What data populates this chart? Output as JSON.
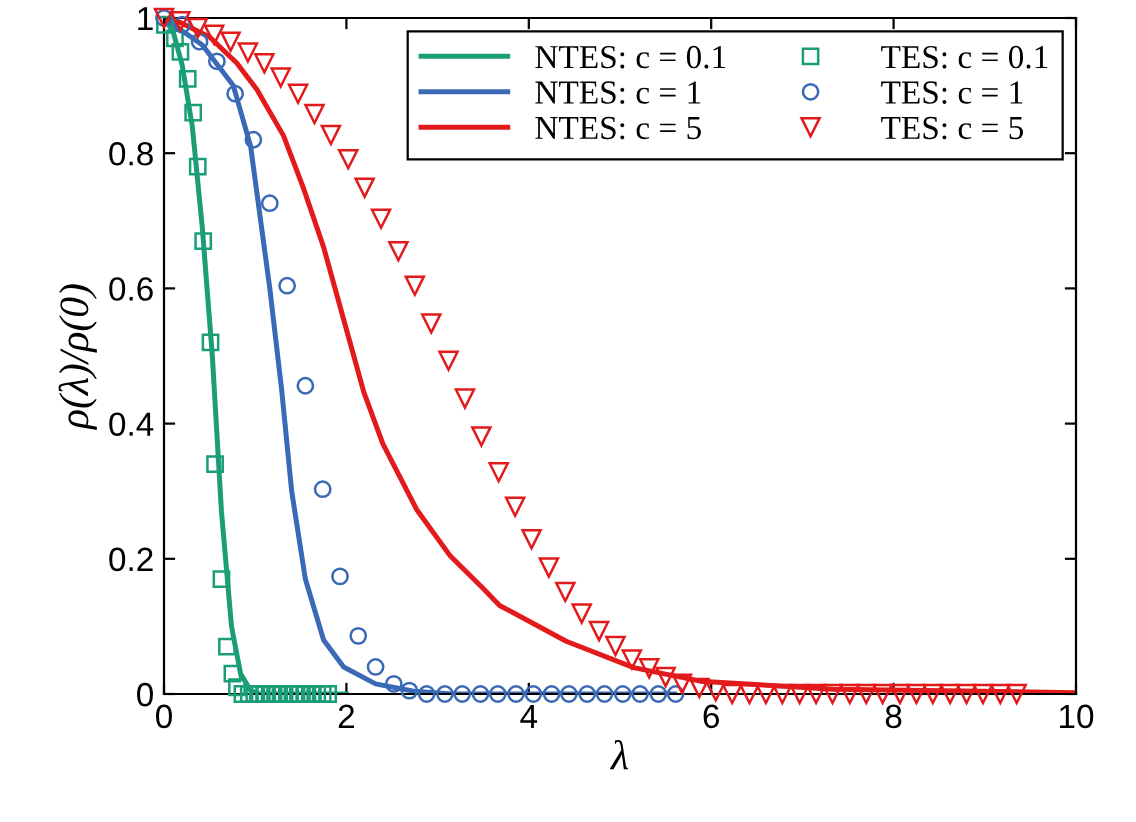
{
  "chart_data": {
    "type": "line",
    "xlabel": "λ",
    "ylabel": "ρ(λ)/ρ(0)",
    "xlim": [
      0,
      10
    ],
    "ylim": [
      0,
      1
    ],
    "xticks": [
      0,
      2,
      4,
      6,
      8,
      10
    ],
    "yticks": [
      0,
      0.2,
      0.4,
      0.6,
      0.8,
      1
    ],
    "grid": false,
    "legend": "top right",
    "series": [
      {
        "name": "NTES: c = 0.1",
        "color": "#1b9e77",
        "line_style": "solid",
        "marker": "none",
        "x": [
          0,
          0.1,
          0.2,
          0.31,
          0.42,
          0.53,
          0.63,
          0.74,
          0.84,
          0.95,
          1.05,
          2.0
        ],
        "values": [
          1,
          0.98,
          0.93,
          0.84,
          0.69,
          0.5,
          0.27,
          0.1,
          0.03,
          0.005,
          0,
          0
        ]
      },
      {
        "name": "NTES: c = 1",
        "color": "#3a6ab5",
        "line_style": "solid",
        "marker": "none",
        "x": [
          0,
          0.42,
          0.76,
          0.95,
          1.16,
          1.29,
          1.4,
          1.55,
          1.75,
          1.97,
          2.32,
          2.74,
          3.16,
          5.6
        ],
        "values": [
          1,
          0.96,
          0.9,
          0.81,
          0.6,
          0.45,
          0.3,
          0.17,
          0.08,
          0.04,
          0.015,
          0.004,
          0,
          0
        ]
      },
      {
        "name": "NTES: c = 5",
        "color": "#e31a1c",
        "line_style": "solid",
        "marker": "none",
        "x": [
          0,
          0.14,
          0.5,
          0.8,
          1.02,
          1.31,
          1.53,
          1.75,
          1.97,
          2.19,
          2.4,
          2.77,
          3.14,
          3.5,
          3.68,
          4.41,
          5.15,
          5.88,
          7.34,
          10
        ],
        "values": [
          1,
          0.996,
          0.972,
          0.933,
          0.894,
          0.826,
          0.748,
          0.661,
          0.554,
          0.447,
          0.37,
          0.273,
          0.204,
          0.156,
          0.131,
          0.078,
          0.039,
          0.019,
          0.007,
          0.002
        ]
      },
      {
        "name": "TES: c = 0.1",
        "type": "scatter",
        "color": "#1b9e77",
        "marker": "square",
        "x": [
          0.01,
          0.12,
          0.18,
          0.26,
          0.32,
          0.37,
          0.43,
          0.51,
          0.56,
          0.63,
          0.69,
          0.75,
          0.8,
          0.86,
          0.93,
          0.99,
          1.05,
          1.11,
          1.18,
          1.24,
          1.3,
          1.37,
          1.43,
          1.49,
          1.55,
          1.62,
          1.68,
          1.74,
          1.8
        ],
        "values": [
          0.99,
          0.97,
          0.95,
          0.91,
          0.86,
          0.78,
          0.67,
          0.52,
          0.34,
          0.17,
          0.07,
          0.03,
          0.01,
          0,
          0,
          0,
          0,
          0,
          0,
          0,
          0,
          0,
          0,
          0,
          0,
          0,
          0,
          0,
          0
        ]
      },
      {
        "name": "TES: c = 1",
        "type": "scatter",
        "color": "#3a6ab5",
        "marker": "circle",
        "x": [
          0,
          0.2,
          0.39,
          0.58,
          0.78,
          0.98,
          1.16,
          1.35,
          1.55,
          1.74,
          1.93,
          2.13,
          2.32,
          2.52,
          2.69,
          2.88,
          3.08,
          3.27,
          3.47,
          3.66,
          3.86,
          4.05,
          4.25,
          4.44,
          4.64,
          4.83,
          5.03,
          5.22,
          5.42,
          5.61
        ],
        "values": [
          1,
          0.99,
          0.965,
          0.936,
          0.888,
          0.82,
          0.726,
          0.604,
          0.456,
          0.303,
          0.174,
          0.086,
          0.04,
          0.015,
          0.005,
          0,
          0,
          0,
          0,
          0,
          0,
          0,
          0,
          0,
          0,
          0,
          0,
          0,
          0,
          0
        ]
      },
      {
        "name": "TES: c = 5",
        "type": "scatter",
        "color": "#e31a1c",
        "marker": "triangle",
        "x": [
          0,
          0.18,
          0.37,
          0.55,
          0.73,
          0.92,
          1.1,
          1.28,
          1.47,
          1.65,
          1.83,
          2.02,
          2.2,
          2.38,
          2.57,
          2.75,
          2.93,
          3.12,
          3.3,
          3.48,
          3.67,
          3.85,
          4.03,
          4.22,
          4.4,
          4.58,
          4.77,
          4.95,
          5.13,
          5.32,
          5.5,
          5.68,
          5.87,
          6.05,
          6.23,
          6.42,
          6.6,
          6.78,
          6.97,
          7.15,
          7.33,
          7.52,
          7.7,
          7.88,
          8.07,
          8.25,
          8.43,
          8.62,
          8.8,
          8.98,
          9.17,
          9.35
        ],
        "values": [
          1,
          0.995,
          0.985,
          0.975,
          0.965,
          0.949,
          0.933,
          0.912,
          0.888,
          0.858,
          0.827,
          0.791,
          0.749,
          0.703,
          0.655,
          0.604,
          0.548,
          0.493,
          0.437,
          0.381,
          0.328,
          0.277,
          0.229,
          0.187,
          0.151,
          0.119,
          0.093,
          0.071,
          0.051,
          0.038,
          0.025,
          0.015,
          0.009,
          0.004,
          0,
          0,
          0,
          0,
          0,
          0,
          0,
          0,
          0,
          0,
          0,
          0,
          0,
          0,
          0,
          0,
          0,
          0
        ]
      }
    ]
  }
}
